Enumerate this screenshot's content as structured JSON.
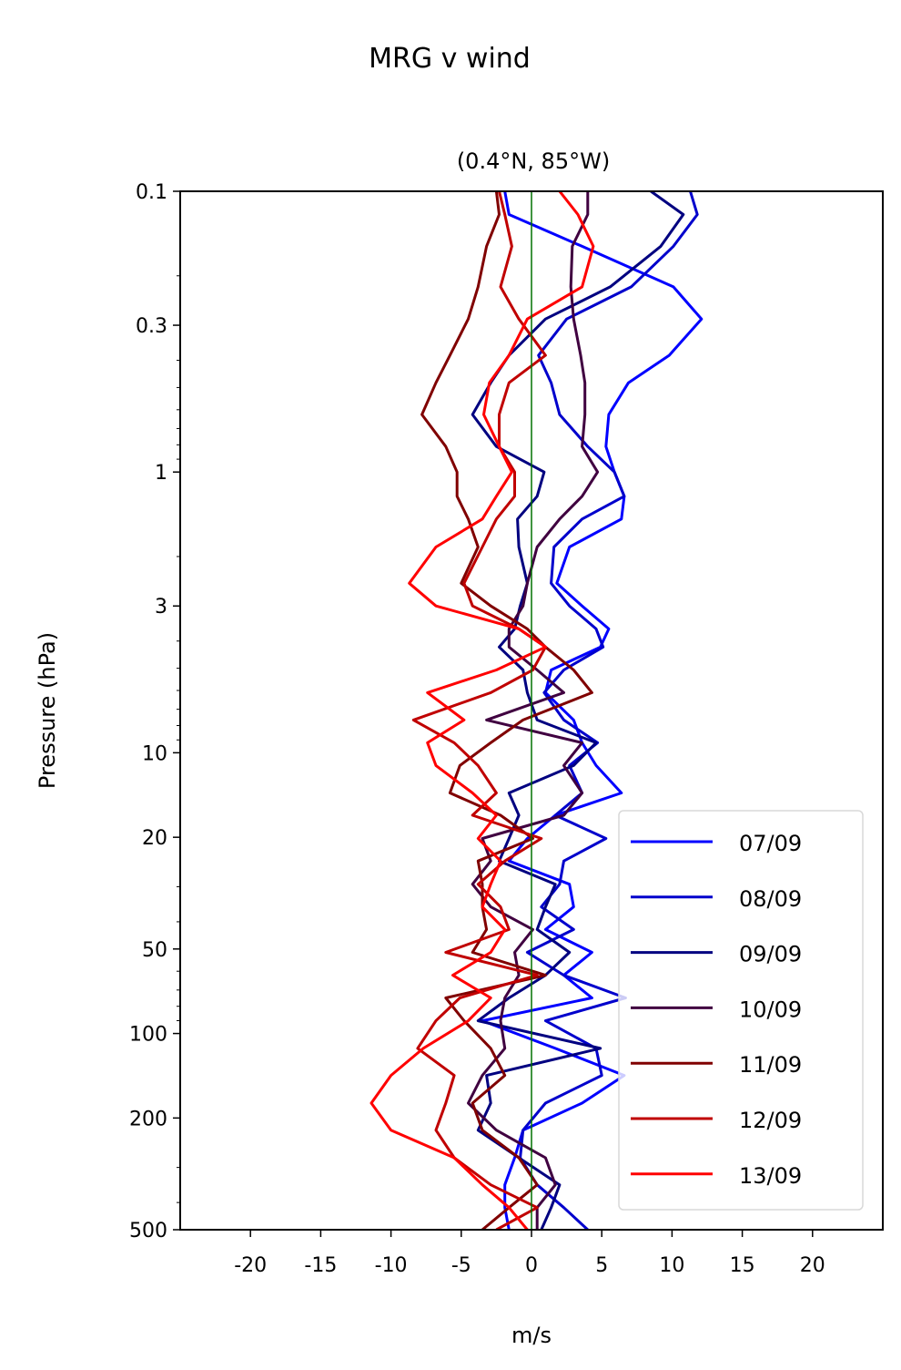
{
  "chart_data": {
    "type": "line",
    "title": "MRG v wind",
    "subtitle": "(0.4°N, 85°W)",
    "xlabel": "m/s",
    "ylabel": "Pressure (hPa)",
    "xlim": [
      -25,
      25
    ],
    "ylim": [
      0.1,
      500
    ],
    "yscale": "log",
    "y_inverted": true,
    "xticks": [
      -20,
      -15,
      -10,
      -5,
      0,
      5,
      10,
      15,
      20
    ],
    "xtick_labels": [
      "-20",
      "-15",
      "-10",
      "-5",
      "0",
      "5",
      "10",
      "15",
      "20"
    ],
    "yticks": [
      0.1,
      0.3,
      1,
      3,
      10,
      20,
      50,
      100,
      200,
      500
    ],
    "ytick_labels": [
      "0.1",
      "0.3",
      "1",
      "3",
      "10",
      "20",
      "50",
      "100",
      "200",
      "500"
    ],
    "reference_line": {
      "x": 0,
      "color": "#007000"
    },
    "legend_position": "lower-right",
    "pressure": [
      0.1,
      0.121,
      0.157,
      0.219,
      0.285,
      0.384,
      0.481,
      0.624,
      0.811,
      1.0,
      1.22,
      1.47,
      1.85,
      2.49,
      3.0,
      3.62,
      4.2,
      5.07,
      6.11,
      7.64,
      9.21,
      11.1,
      13.9,
      16.7,
      20.2,
      24.3,
      29.4,
      35.4,
      42.6,
      51.4,
      62.0,
      74.7,
      90.1,
      113,
      141,
      177,
      221,
      277,
      346,
      417,
      500
    ],
    "series": [
      {
        "name": "07/09",
        "color": "#0000ff",
        "values": [
          -1.9,
          -1.6,
          3.6,
          10.1,
          12.1,
          9.8,
          6.9,
          5.5,
          5.3,
          5.9,
          6.6,
          6.4,
          2.7,
          1.8,
          3.6,
          5.5,
          4.9,
          1.4,
          1.0,
          3.0,
          3.6,
          4.6,
          6.4,
          1.7,
          -0.3,
          -1.6,
          2.7,
          3.0,
          1.0,
          4.3,
          2.3,
          4.3,
          -3.5,
          1.7,
          6.6,
          3.6,
          -0.6,
          -1.2,
          -1.9,
          -1.9,
          -1.6
        ]
      },
      {
        "name": "08/09",
        "color": "#0000cc",
        "values": [
          11.3,
          11.8,
          10.1,
          7.1,
          2.5,
          0.5,
          1.4,
          2.0,
          4.0,
          5.9,
          6.6,
          3.6,
          1.6,
          1.4,
          2.7,
          4.6,
          5.1,
          2.3,
          0.9,
          2.3,
          4.7,
          2.7,
          3.6,
          1.7,
          5.3,
          2.3,
          2.0,
          0.7,
          3.0,
          -0.3,
          2.3,
          6.7,
          1.0,
          4.6,
          5.0,
          1.0,
          -0.6,
          -0.8,
          0.4,
          2.3,
          4.0
        ]
      },
      {
        "name": "09/09",
        "color": "#000080",
        "values": [
          8.5,
          10.8,
          9.2,
          5.6,
          1.0,
          -1.6,
          -2.9,
          -4.2,
          -2.5,
          0.9,
          0.4,
          -1.0,
          -0.9,
          -0.3,
          -0.8,
          -1.2,
          -2.3,
          -0.6,
          -0.3,
          0.4,
          4.6,
          3.0,
          -1.6,
          -0.9,
          -1.6,
          -2.3,
          1.7,
          1.0,
          0.4,
          2.7,
          1.0,
          -1.6,
          -3.8,
          4.9,
          -3.2,
          -2.9,
          -3.8,
          -0.9,
          2.0,
          1.4,
          0.7
        ]
      },
      {
        "name": "10/09",
        "color": "#400040",
        "values": [
          4.0,
          4.0,
          2.9,
          2.8,
          3.0,
          3.5,
          3.8,
          3.8,
          3.6,
          4.7,
          3.6,
          2.0,
          0.4,
          -0.3,
          -0.6,
          -1.6,
          -1.6,
          0.4,
          2.3,
          -3.2,
          3.6,
          2.3,
          3.6,
          2.3,
          -3.5,
          -2.9,
          -4.2,
          -2.9,
          0.1,
          -1.2,
          -0.9,
          -1.9,
          -2.2,
          -1.9,
          -3.5,
          -4.5,
          -2.5,
          1.0,
          1.7,
          0.4,
          0.4
        ]
      },
      {
        "name": "11/09",
        "color": "#800000",
        "values": [
          -2.5,
          -2.3,
          -3.2,
          -3.8,
          -4.5,
          -5.8,
          -6.8,
          -7.8,
          -6.1,
          -5.3,
          -5.3,
          -4.5,
          -3.8,
          -5.0,
          -2.9,
          -0.3,
          1.0,
          3.0,
          4.3,
          -0.6,
          -2.9,
          -5.1,
          -5.8,
          -2.2,
          0.1,
          -3.8,
          -3.5,
          -3.5,
          -3.2,
          -4.2,
          1.0,
          -6.1,
          -4.8,
          -2.9,
          -1.9,
          -4.2,
          -3.5,
          -0.9,
          0.4,
          -1.6,
          -3.5
        ]
      },
      {
        "name": "12/09",
        "color": "#c00000",
        "values": [
          -2.3,
          -1.9,
          -1.4,
          -2.2,
          -0.9,
          1.0,
          -1.6,
          -2.3,
          -2.3,
          -1.2,
          -1.2,
          -2.5,
          -3.5,
          -4.8,
          -4.2,
          -0.9,
          1.0,
          0.1,
          -2.9,
          -8.4,
          -5.5,
          -3.8,
          -2.5,
          -4.2,
          0.7,
          -1.9,
          -3.8,
          -2.2,
          -1.6,
          -6.1,
          0.4,
          -5.1,
          -6.8,
          -8.1,
          -5.5,
          -6.1,
          -6.8,
          -5.5,
          -2.9,
          0.4,
          -2.5
        ]
      },
      {
        "name": "13/09",
        "color": "#ff0000",
        "values": [
          2.0,
          3.3,
          4.4,
          3.6,
          -0.3,
          -1.6,
          -3.0,
          -3.4,
          -2.3,
          -1.4,
          -2.5,
          -3.5,
          -6.8,
          -8.7,
          -6.8,
          -0.9,
          1.0,
          -2.5,
          -7.4,
          -4.8,
          -7.4,
          -6.8,
          -4.2,
          -2.5,
          -3.8,
          -2.2,
          -2.9,
          -3.5,
          -1.9,
          -2.9,
          -5.6,
          -2.9,
          -4.5,
          -7.7,
          -10.0,
          -11.4,
          -10.0,
          -5.5,
          -3.5,
          -1.6,
          -0.3
        ]
      }
    ]
  }
}
